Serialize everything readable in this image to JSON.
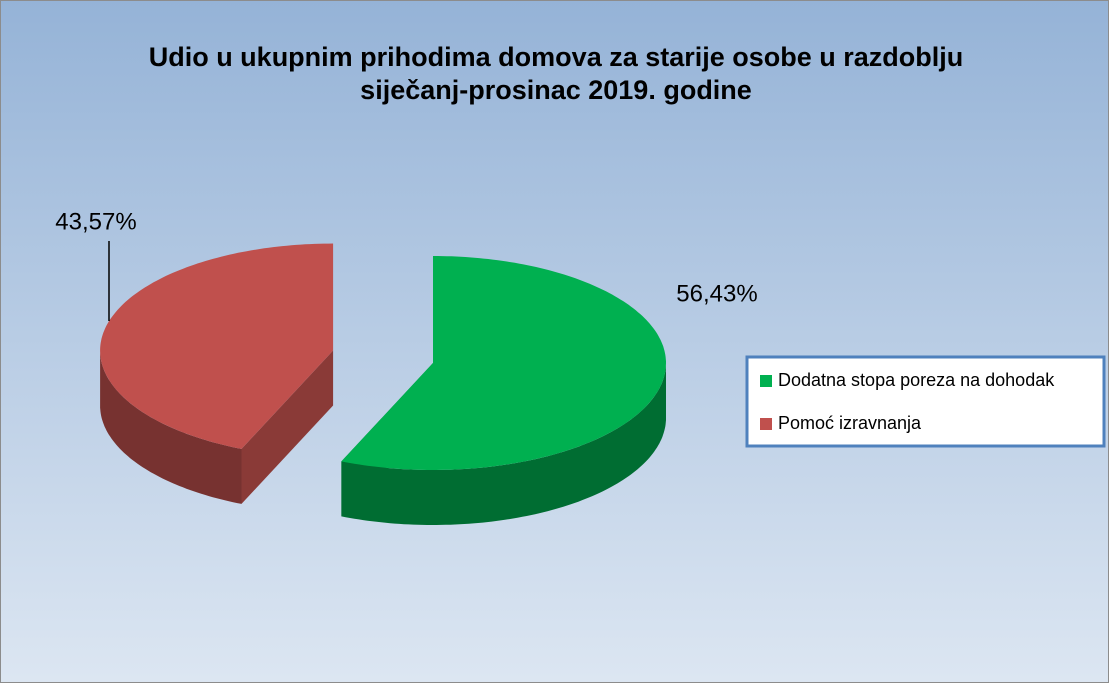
{
  "chart_data": {
    "type": "pie",
    "title": "Udio u ukupnim prihodima domova za starije osobe u razdoblju siječanj-prosinac 2019. godine",
    "categories": [
      "Dodatna stopa poreza na dohodak",
      "Pomoć izravnanja"
    ],
    "values": [
      56.43,
      43.57
    ],
    "value_labels": [
      "56,43%",
      "43,57%"
    ],
    "colors": [
      "#00b050",
      "#c0504d"
    ],
    "legend": "right"
  }
}
